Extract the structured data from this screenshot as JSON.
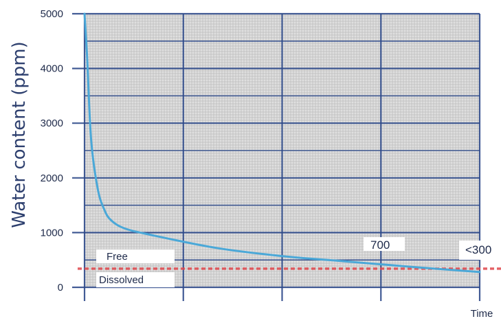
{
  "chart_data": {
    "type": "line",
    "title": "",
    "xlabel": "Time",
    "ylabel": "Water content (ppm)",
    "ylim": [
      0,
      5000
    ],
    "y_ticks": [
      0,
      1000,
      2000,
      3000,
      4000,
      5000
    ],
    "y_tick_labels": [
      "0",
      "1000",
      "2000",
      "3000",
      "4000",
      "5000"
    ],
    "x_gridlines": 4,
    "grid": true,
    "series": [
      {
        "values": [
          {
            "x": 0.0,
            "y": 5000
          },
          {
            "x": 0.02,
            "y": 4200
          },
          {
            "x": 0.05,
            "y": 2700
          },
          {
            "x": 0.1,
            "y": 1800
          },
          {
            "x": 0.15,
            "y": 1420
          },
          {
            "x": 0.2,
            "y": 1230
          },
          {
            "x": 0.3,
            "y": 1080
          },
          {
            "x": 0.5,
            "y": 960
          },
          {
            "x": 1.0,
            "y": 720
          },
          {
            "x": 1.5,
            "y": 570
          },
          {
            "x": 2.0,
            "y": 470
          },
          {
            "x": 2.5,
            "y": 370
          },
          {
            "x": 3.0,
            "y": 280
          }
        ]
      }
    ],
    "threshold": {
      "y": 340,
      "color": "#e0474c"
    },
    "annotations": [
      {
        "text": "700",
        "x": 2.05,
        "y": 720
      },
      {
        "text": "<300",
        "x": 2.75,
        "y": 620
      }
    ],
    "zones": {
      "free": "Free",
      "dissolved": "Dissolved"
    },
    "colors": {
      "line": "#4aa8d8",
      "grid": "#2e4a8a",
      "threshold": "#e0474c",
      "background": "#d7d7d7"
    }
  }
}
